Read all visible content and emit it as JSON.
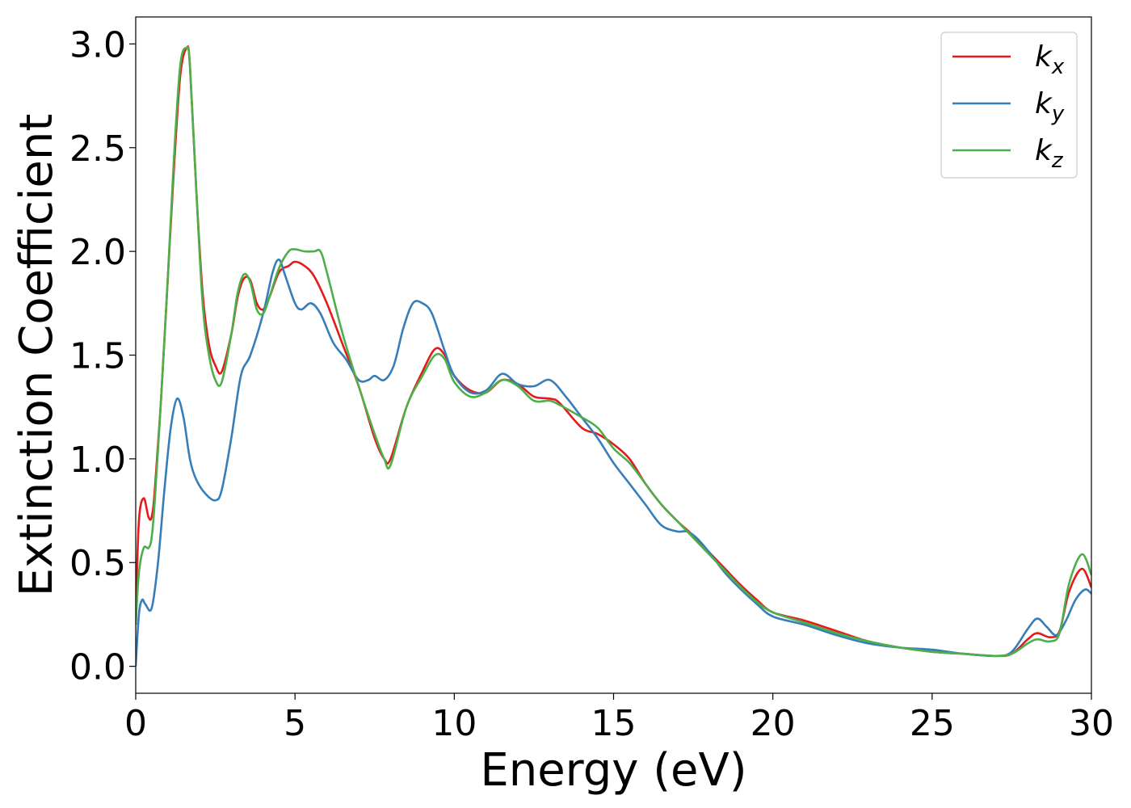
{
  "chart_data": {
    "type": "line",
    "title": "",
    "xlabel": "Energy (eV)",
    "ylabel": "Extinction Coefficient",
    "xlim": [
      0,
      30
    ],
    "ylim": [
      -0.13,
      3.13
    ],
    "xticks": [
      0,
      5,
      10,
      15,
      20,
      25,
      30
    ],
    "xtick_labels": [
      "0",
      "5",
      "10",
      "15",
      "20",
      "25",
      "30"
    ],
    "yticks": [
      0.0,
      0.5,
      1.0,
      1.5,
      2.0,
      2.5,
      3.0
    ],
    "ytick_labels": [
      "0.0",
      "0.5",
      "1.0",
      "1.5",
      "2.0",
      "2.5",
      "3.0"
    ],
    "grid": false,
    "legend": "top-right",
    "series": [
      {
        "name": "k",
        "subscript": "x",
        "color": "#e41a1c",
        "x": [
          0,
          0.1,
          0.25,
          0.4,
          0.5,
          0.6,
          0.8,
          1.0,
          1.2,
          1.4,
          1.6,
          1.7,
          1.9,
          2.1,
          2.3,
          2.5,
          2.7,
          3.0,
          3.2,
          3.4,
          3.6,
          3.8,
          4.0,
          4.2,
          4.5,
          4.8,
          5.0,
          5.3,
          5.6,
          6.0,
          6.5,
          7.0,
          7.5,
          7.8,
          8.0,
          8.5,
          9.0,
          9.4,
          9.7,
          10.0,
          10.5,
          11.0,
          11.5,
          12.0,
          12.5,
          13.0,
          13.3,
          14.0,
          14.5,
          15.0,
          15.5,
          16.0,
          16.5,
          17.0,
          17.5,
          18.0,
          18.5,
          19.0,
          19.5,
          20.0,
          21.0,
          22.0,
          23.0,
          24.0,
          25.0,
          26.0,
          27.0,
          27.5,
          28.0,
          28.3,
          28.7,
          29.0,
          29.3,
          29.7,
          30.0
        ],
        "y": [
          0.25,
          0.7,
          0.81,
          0.72,
          0.72,
          0.85,
          1.3,
          1.85,
          2.4,
          2.85,
          2.98,
          2.9,
          2.3,
          1.8,
          1.55,
          1.45,
          1.42,
          1.6,
          1.78,
          1.87,
          1.86,
          1.75,
          1.72,
          1.78,
          1.9,
          1.93,
          1.95,
          1.93,
          1.88,
          1.75,
          1.55,
          1.35,
          1.1,
          1.0,
          1.0,
          1.25,
          1.42,
          1.53,
          1.5,
          1.4,
          1.33,
          1.32,
          1.38,
          1.36,
          1.3,
          1.29,
          1.27,
          1.15,
          1.12,
          1.07,
          1.0,
          0.88,
          0.78,
          0.7,
          0.63,
          0.55,
          0.47,
          0.39,
          0.32,
          0.26,
          0.22,
          0.17,
          0.12,
          0.09,
          0.07,
          0.06,
          0.05,
          0.06,
          0.13,
          0.16,
          0.14,
          0.17,
          0.36,
          0.47,
          0.38
        ]
      },
      {
        "name": "k",
        "subscript": "y",
        "color": "#377eb8",
        "x": [
          0,
          0.1,
          0.2,
          0.3,
          0.5,
          0.7,
          0.9,
          1.1,
          1.3,
          1.5,
          1.7,
          1.9,
          2.2,
          2.5,
          2.7,
          3.0,
          3.3,
          3.6,
          4.0,
          4.3,
          4.5,
          4.7,
          5.0,
          5.2,
          5.5,
          5.8,
          6.2,
          6.6,
          7.0,
          7.3,
          7.5,
          7.8,
          8.1,
          8.4,
          8.7,
          9.0,
          9.3,
          9.7,
          10.0,
          10.5,
          11.0,
          11.5,
          12.0,
          12.5,
          13.0,
          13.5,
          14.0,
          14.5,
          15.0,
          15.5,
          16.0,
          16.5,
          17.0,
          17.3,
          17.6,
          18.0,
          18.5,
          19.0,
          19.5,
          20.0,
          21.0,
          22.0,
          23.0,
          24.0,
          25.0,
          26.0,
          27.0,
          27.5,
          28.0,
          28.3,
          28.6,
          28.9,
          29.2,
          29.5,
          29.8,
          30.0
        ],
        "y": [
          0.0,
          0.25,
          0.32,
          0.3,
          0.28,
          0.5,
          0.85,
          1.15,
          1.29,
          1.2,
          1.0,
          0.9,
          0.83,
          0.8,
          0.85,
          1.1,
          1.4,
          1.5,
          1.7,
          1.9,
          1.96,
          1.88,
          1.75,
          1.72,
          1.75,
          1.7,
          1.56,
          1.48,
          1.38,
          1.38,
          1.4,
          1.38,
          1.45,
          1.63,
          1.75,
          1.75,
          1.7,
          1.52,
          1.4,
          1.32,
          1.33,
          1.41,
          1.36,
          1.35,
          1.38,
          1.3,
          1.2,
          1.1,
          0.98,
          0.88,
          0.78,
          0.68,
          0.65,
          0.65,
          0.62,
          0.55,
          0.45,
          0.37,
          0.3,
          0.24,
          0.2,
          0.15,
          0.11,
          0.09,
          0.08,
          0.06,
          0.05,
          0.07,
          0.18,
          0.23,
          0.19,
          0.15,
          0.22,
          0.32,
          0.37,
          0.35
        ]
      },
      {
        "name": "k",
        "subscript": "z",
        "color": "#4daf4a",
        "x": [
          0,
          0.1,
          0.25,
          0.4,
          0.5,
          0.6,
          0.8,
          1.0,
          1.2,
          1.4,
          1.6,
          1.7,
          1.9,
          2.1,
          2.3,
          2.5,
          2.7,
          3.0,
          3.2,
          3.4,
          3.6,
          3.8,
          4.0,
          4.2,
          4.5,
          4.8,
          5.0,
          5.3,
          5.6,
          5.8,
          6.0,
          6.5,
          7.0,
          7.5,
          7.8,
          8.0,
          8.5,
          9.0,
          9.4,
          9.7,
          10.0,
          10.5,
          11.0,
          11.5,
          12.0,
          12.5,
          13.0,
          13.3,
          14.0,
          14.5,
          15.0,
          15.5,
          16.0,
          16.5,
          17.0,
          17.5,
          18.0,
          18.5,
          19.0,
          19.5,
          20.0,
          21.0,
          22.0,
          23.0,
          24.0,
          25.0,
          26.0,
          27.0,
          27.5,
          28.0,
          28.3,
          28.7,
          29.0,
          29.3,
          29.7,
          30.0
        ],
        "y": [
          0.2,
          0.45,
          0.57,
          0.57,
          0.62,
          0.8,
          1.3,
          1.85,
          2.45,
          2.9,
          2.98,
          2.9,
          2.3,
          1.75,
          1.5,
          1.38,
          1.37,
          1.6,
          1.8,
          1.89,
          1.85,
          1.72,
          1.7,
          1.78,
          1.92,
          2.0,
          2.01,
          2.0,
          2.0,
          2.0,
          1.9,
          1.6,
          1.35,
          1.12,
          1.0,
          0.97,
          1.25,
          1.4,
          1.5,
          1.48,
          1.37,
          1.3,
          1.32,
          1.38,
          1.35,
          1.28,
          1.28,
          1.26,
          1.2,
          1.15,
          1.05,
          0.98,
          0.88,
          0.78,
          0.7,
          0.62,
          0.54,
          0.46,
          0.38,
          0.31,
          0.26,
          0.21,
          0.16,
          0.12,
          0.09,
          0.07,
          0.06,
          0.05,
          0.06,
          0.11,
          0.13,
          0.12,
          0.16,
          0.4,
          0.54,
          0.44
        ]
      }
    ]
  }
}
